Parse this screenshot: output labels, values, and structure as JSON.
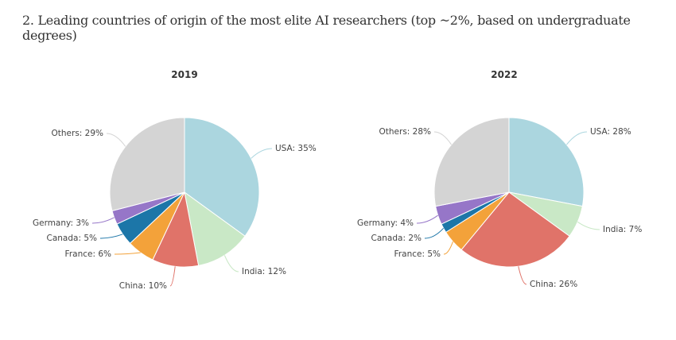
{
  "title": "2. Leading countries of origin of the most elite AI researchers (top ~2%, based on undergraduate degrees)",
  "chart_data": [
    {
      "type": "pie",
      "title": "2019",
      "categories": [
        "USA",
        "India",
        "China",
        "France",
        "Canada",
        "Germany",
        "Others"
      ],
      "values": [
        35,
        12,
        10,
        6,
        5,
        3,
        29
      ],
      "labels": [
        "USA: 35%",
        "India: 12%",
        "China: 10%",
        "France: 6%",
        "Canada: 5%",
        "Germany: 3%",
        "Others: 29%"
      ],
      "colors": [
        "#abd6df",
        "#c9e8c6",
        "#e07369",
        "#f3a23a",
        "#1c76a8",
        "#9676c8",
        "#d4d4d4"
      ]
    },
    {
      "type": "pie",
      "title": "2022",
      "categories": [
        "USA",
        "India",
        "China",
        "France",
        "Canada",
        "Germany",
        "Others"
      ],
      "values": [
        28,
        7,
        26,
        5,
        2,
        4,
        28
      ],
      "labels": [
        "USA: 28%",
        "India: 7%",
        "China: 26%",
        "France: 5%",
        "Canada: 2%",
        "Germany: 4%",
        "Others: 28%"
      ],
      "colors": [
        "#abd6df",
        "#c9e8c6",
        "#e07369",
        "#f3a23a",
        "#1c76a8",
        "#9676c8",
        "#d4d4d4"
      ]
    }
  ]
}
